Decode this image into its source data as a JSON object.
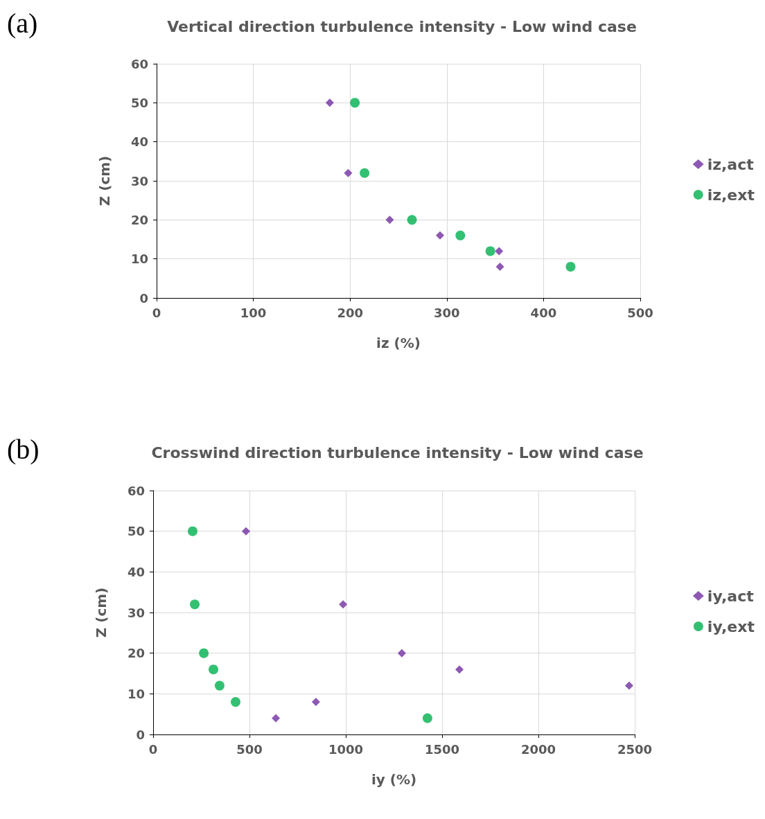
{
  "chart_data": [
    {
      "type": "scatter",
      "title": "Vertical direction turbulence intensity - Low wind case",
      "xlabel": "iz (%)",
      "ylabel": "Z (cm)",
      "annotations": [
        "(a)"
      ],
      "xlim": [
        0,
        500
      ],
      "xticks": [
        0,
        100,
        200,
        300,
        400,
        500
      ],
      "ylim": [
        0,
        60
      ],
      "yticks": [
        0,
        10,
        20,
        30,
        40,
        50,
        60
      ],
      "grid": true,
      "legend": "right",
      "series": [
        {
          "name": "iz,act",
          "color": "#7030a0",
          "marker": "diamond",
          "x": [
            179,
            198,
            241,
            293,
            354,
            355
          ],
          "values": [
            50,
            32,
            20,
            16,
            12,
            8
          ]
        },
        {
          "name": "iz,ext",
          "color": "#00b050",
          "marker": "circle",
          "x": [
            205,
            215,
            264,
            314,
            345,
            428
          ],
          "values": [
            50,
            32,
            20,
            16,
            12,
            8
          ]
        }
      ]
    },
    {
      "type": "scatter",
      "title": "Crosswind direction turbulence intensity - Low wind case",
      "xlabel": "iy (%)",
      "ylabel": "Z (cm)",
      "annotations": [
        "(b)"
      ],
      "xlim": [
        0,
        2500
      ],
      "xticks": [
        0,
        500,
        1000,
        1500,
        2000,
        2500
      ],
      "ylim": [
        0,
        60
      ],
      "yticks": [
        0,
        10,
        20,
        30,
        40,
        50,
        60
      ],
      "grid": true,
      "legend": "right",
      "series": [
        {
          "name": "iy,act",
          "color": "#7030a0",
          "marker": "diamond",
          "x": [
            482,
            986,
            1291,
            1590,
            2471,
            845,
            637
          ],
          "values": [
            50,
            32,
            20,
            16,
            12,
            8,
            4
          ]
        },
        {
          "name": "iy,ext",
          "color": "#00b050",
          "marker": "circle",
          "x": [
            205,
            216,
            263,
            313,
            345,
            428,
            1424
          ],
          "values": [
            50,
            32,
            20,
            16,
            12,
            8,
            4
          ]
        }
      ]
    }
  ]
}
